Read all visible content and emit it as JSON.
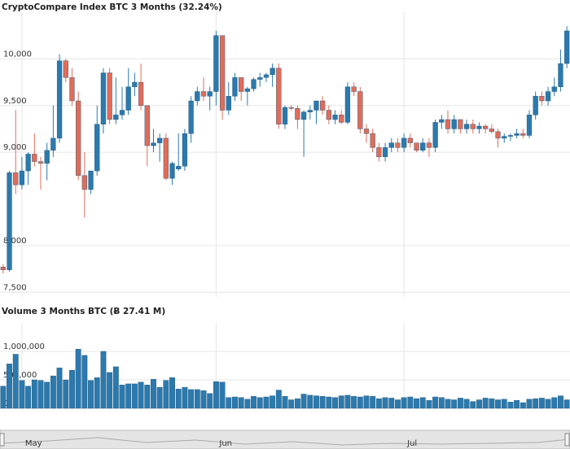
{
  "chart_data": [
    {
      "type": "candlestick",
      "title": "CryptoCompare Index BTC 3 Months (32.24%)",
      "categories": [
        null,
        null,
        null,
        "May",
        null,
        null,
        null,
        null,
        null,
        null,
        null,
        null,
        null,
        null,
        null,
        null,
        null,
        null,
        null,
        null,
        null,
        null,
        null,
        null,
        null,
        null,
        null,
        null,
        null,
        null,
        null,
        null,
        null,
        null,
        "Jun",
        null,
        null,
        null,
        null,
        null,
        null,
        null,
        null,
        null,
        null,
        null,
        null,
        null,
        null,
        null,
        null,
        null,
        null,
        null,
        null,
        null,
        null,
        null,
        null,
        null,
        null,
        null,
        null,
        null,
        "Jul",
        null,
        null,
        null,
        null,
        null,
        null,
        null,
        null,
        null,
        null,
        null,
        null,
        null,
        null,
        null,
        null,
        null,
        null,
        null,
        null,
        null,
        null,
        null,
        null,
        null,
        null
      ],
      "open": [
        7770,
        7740,
        8780,
        8650,
        8800,
        8980,
        8900,
        8880,
        9020,
        9150,
        9980,
        9800,
        9550,
        8750,
        8600,
        8800,
        9300,
        9850,
        9350,
        9400,
        9450,
        9700,
        9750,
        9500,
        9070,
        9100,
        9150,
        8720,
        8820,
        8850,
        9200,
        9550,
        9650,
        9600,
        9650,
        10250,
        9450,
        9600,
        9800,
        9650,
        9680,
        9780,
        9800,
        9830,
        9900,
        9300,
        9480,
        9470,
        9350,
        9430,
        9450,
        9550,
        9450,
        9350,
        9400,
        9320,
        9700,
        9650,
        9250,
        9200,
        9050,
        8950,
        9050,
        9100,
        9050,
        9150,
        9100,
        9020,
        9100,
        9050,
        9320,
        9350,
        9250,
        9350,
        9250,
        9300,
        9250,
        9280,
        9250,
        9220,
        9150,
        9170,
        9180,
        9200,
        9180,
        9400,
        9600,
        9550,
        9650,
        9700,
        9950
      ],
      "high": [
        7800,
        8800,
        9450,
        8950,
        9000,
        9200,
        8950,
        9100,
        9500,
        10050,
        10000,
        9900,
        9650,
        9000,
        8800,
        9500,
        9900,
        9900,
        9800,
        9700,
        9900,
        9850,
        9950,
        9500,
        9250,
        9200,
        9200,
        8900,
        9200,
        9250,
        9600,
        9700,
        9800,
        9700,
        10300,
        10250,
        9750,
        9850,
        9800,
        9700,
        9800,
        9850,
        9850,
        9950,
        9950,
        9500,
        9500,
        9500,
        9450,
        9500,
        9550,
        9600,
        9500,
        9450,
        9450,
        9750,
        9750,
        9700,
        9300,
        9250,
        9100,
        9100,
        9150,
        9150,
        9200,
        9200,
        9100,
        9150,
        9150,
        9350,
        9400,
        9450,
        9400,
        9350,
        9350,
        9350,
        9320,
        9300,
        9300,
        9250,
        9200,
        9200,
        9250,
        9250,
        9450,
        9650,
        9650,
        9700,
        9800,
        10100,
        10350
      ],
      "low": [
        7700,
        7720,
        8550,
        8600,
        8650,
        8850,
        8600,
        8700,
        8950,
        9100,
        9750,
        9500,
        8700,
        8300,
        8550,
        8750,
        9200,
        9300,
        9300,
        9350,
        9400,
        9600,
        9450,
        8850,
        9000,
        8900,
        8700,
        8650,
        8800,
        8800,
        9100,
        9500,
        9550,
        9450,
        9500,
        9350,
        9400,
        9550,
        9550,
        9500,
        9650,
        9700,
        9750,
        9700,
        9250,
        9250,
        9450,
        9250,
        8950,
        9350,
        9300,
        9400,
        9300,
        9300,
        9300,
        9300,
        9600,
        9200,
        9100,
        9000,
        8900,
        8900,
        9000,
        9000,
        9000,
        9050,
        9000,
        9000,
        8950,
        9000,
        9250,
        9200,
        9200,
        9200,
        9200,
        9200,
        9200,
        9200,
        9200,
        9050,
        9100,
        9120,
        9150,
        9150,
        9150,
        9350,
        9500,
        9500,
        9600,
        9650,
        9900
      ],
      "close": [
        7740,
        8780,
        8650,
        8800,
        8980,
        8900,
        8880,
        9020,
        9150,
        9980,
        9800,
        9550,
        8750,
        8600,
        8800,
        9300,
        9850,
        9350,
        9400,
        9450,
        9700,
        9750,
        9500,
        9070,
        9100,
        9150,
        8720,
        8880,
        8850,
        9200,
        9550,
        9650,
        9600,
        9650,
        10250,
        9450,
        9600,
        9800,
        9650,
        9680,
        9780,
        9800,
        9830,
        9900,
        9300,
        9480,
        9470,
        9350,
        9430,
        9450,
        9550,
        9450,
        9350,
        9400,
        9320,
        9700,
        9650,
        9250,
        9200,
        9050,
        8950,
        9050,
        9100,
        9050,
        9150,
        9100,
        9020,
        9100,
        9050,
        9320,
        9350,
        9250,
        9350,
        9250,
        9300,
        9250,
        9280,
        9250,
        9220,
        9150,
        9170,
        9180,
        9200,
        9180,
        9400,
        9600,
        9550,
        9650,
        9700,
        9950,
        10300
      ],
      "up_color": "#2c79ad",
      "down_color": "#e06c5a",
      "ylim": [
        7450,
        10500
      ],
      "yticks": [
        {
          "value": 7500,
          "label": "7,500"
        },
        {
          "value": 8000,
          "label": "8,000"
        },
        {
          "value": 9000,
          "label": "9,000"
        },
        {
          "value": 9500,
          "label": "9,500"
        },
        {
          "value": 10000,
          "label": "10,000"
        }
      ],
      "grid": true
    },
    {
      "type": "bar",
      "title": "Volume 3 Months BTC (Ƀ 27.41 M)",
      "values": [
        390000,
        780000,
        950000,
        490000,
        390000,
        500000,
        490000,
        460000,
        570000,
        710000,
        500000,
        670000,
        1040000,
        930000,
        490000,
        540000,
        1000000,
        630000,
        730000,
        410000,
        430000,
        430000,
        460000,
        410000,
        510000,
        370000,
        490000,
        540000,
        340000,
        370000,
        330000,
        330000,
        310000,
        260000,
        470000,
        460000,
        190000,
        200000,
        190000,
        160000,
        210000,
        190000,
        200000,
        220000,
        320000,
        210000,
        150000,
        170000,
        250000,
        230000,
        220000,
        210000,
        200000,
        190000,
        220000,
        230000,
        210000,
        200000,
        220000,
        210000,
        170000,
        190000,
        180000,
        150000,
        190000,
        200000,
        170000,
        190000,
        140000,
        200000,
        190000,
        160000,
        150000,
        180000,
        160000,
        120000,
        150000,
        180000,
        170000,
        150000,
        160000,
        110000,
        140000,
        100000,
        160000,
        170000,
        180000,
        160000,
        190000,
        220000,
        150000
      ],
      "color": "#2c79ad",
      "ylim": [
        0,
        1500000
      ],
      "yticks": [
        0,
        {
          "value": 500000,
          "label": "500,000"
        },
        {
          "value": 1000000,
          "label": "1,000,000"
        }
      ],
      "grid": true
    }
  ]
}
